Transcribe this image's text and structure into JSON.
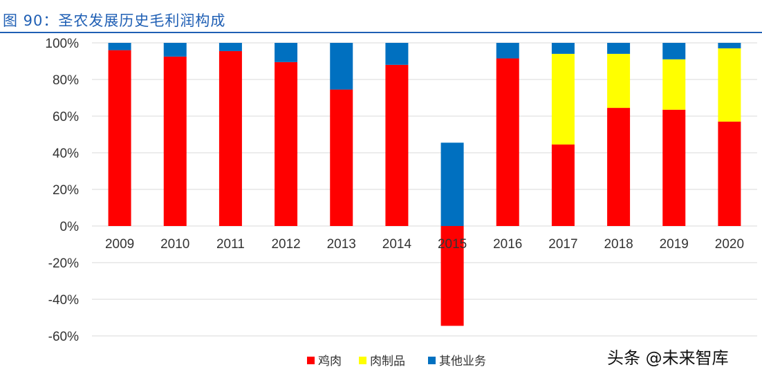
{
  "figure_title": "图 90：圣农发展历史毛利润构成",
  "watermark": "头条 @未来智库",
  "colors": {
    "title": "#1f5fb4",
    "chicken": "#ff0000",
    "meat_products": "#ffff00",
    "other": "#0070c0",
    "grid": "#d9d9d9"
  },
  "chart_data": {
    "type": "bar",
    "stacked": true,
    "categories": [
      "2009",
      "2010",
      "2011",
      "2012",
      "2013",
      "2014",
      "2015",
      "2016",
      "2017",
      "2018",
      "2019",
      "2020"
    ],
    "series": [
      {
        "name": "鸡肉",
        "values": [
          96,
          92.5,
          95.5,
          89.5,
          74.5,
          88,
          -54.5,
          91.5,
          44.5,
          64.5,
          63.5,
          57
        ],
        "color_key": "chicken"
      },
      {
        "name": "肉制品",
        "values": [
          0,
          0,
          0,
          0,
          0,
          0,
          0,
          0,
          49.5,
          29.5,
          27.5,
          40
        ],
        "color_key": "meat_products"
      },
      {
        "name": "其他业务",
        "values": [
          4,
          7.5,
          4.5,
          10.5,
          25.5,
          12,
          45.5,
          8.5,
          6,
          6,
          9,
          3
        ],
        "color_key": "other"
      }
    ],
    "ylim": [
      -60,
      100
    ],
    "yticks": [
      100,
      80,
      60,
      40,
      20,
      0,
      -20,
      -40,
      -60
    ],
    "ytick_labels": [
      "100%",
      "80%",
      "60%",
      "40%",
      "20%",
      "0%",
      "-20%",
      "-40%",
      "-60%"
    ],
    "grid": true,
    "legend_position": "bottom",
    "xlabel": "",
    "ylabel": ""
  }
}
